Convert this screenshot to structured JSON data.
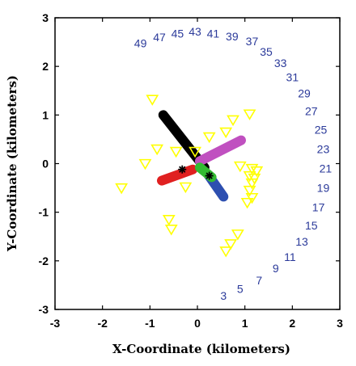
{
  "chart_data": {
    "type": "scatter",
    "title": "",
    "xlabel": "X-Coordinate (kilometers)",
    "ylabel": "Y-Coordinate (kilometers)",
    "xlim": [
      -3,
      3
    ],
    "ylim": [
      -3,
      3
    ],
    "x_ticks": [
      -3,
      -2,
      -1,
      0,
      1,
      2,
      3
    ],
    "y_ticks": [
      -3,
      -2,
      -1,
      0,
      1,
      2,
      3
    ],
    "grid": false,
    "colors": {
      "bearing_labels": "#2b3a9a",
      "triangles": "#ffff00",
      "black_arm": "#000000",
      "pink_arm": "#c050c0",
      "blue_arm": "#2d4fb0",
      "red_arm": "#e02020",
      "green_arm": "#33bb33"
    },
    "bearing_labels": [
      {
        "text": "3",
        "x": 0.55,
        "y": -2.72
      },
      {
        "text": "5",
        "x": 0.9,
        "y": -2.58
      },
      {
        "text": "7",
        "x": 1.3,
        "y": -2.4
      },
      {
        "text": "9",
        "x": 1.65,
        "y": -2.15
      },
      {
        "text": "11",
        "x": 1.95,
        "y": -1.92
      },
      {
        "text": "13",
        "x": 2.2,
        "y": -1.6
      },
      {
        "text": "15",
        "x": 2.4,
        "y": -1.27
      },
      {
        "text": "17",
        "x": 2.55,
        "y": -0.9
      },
      {
        "text": "19",
        "x": 2.65,
        "y": -0.5
      },
      {
        "text": "21",
        "x": 2.7,
        "y": -0.1
      },
      {
        "text": "23",
        "x": 2.65,
        "y": 0.3
      },
      {
        "text": "25",
        "x": 2.6,
        "y": 0.7
      },
      {
        "text": "27",
        "x": 2.4,
        "y": 1.08
      },
      {
        "text": "29",
        "x": 2.25,
        "y": 1.45
      },
      {
        "text": "31",
        "x": 2.0,
        "y": 1.78
      },
      {
        "text": "33",
        "x": 1.75,
        "y": 2.07
      },
      {
        "text": "35",
        "x": 1.45,
        "y": 2.3
      },
      {
        "text": "37",
        "x": 1.15,
        "y": 2.52
      },
      {
        "text": "39",
        "x": 0.73,
        "y": 2.62
      },
      {
        "text": "41",
        "x": 0.33,
        "y": 2.68
      },
      {
        "text": "43",
        "x": -0.05,
        "y": 2.72
      },
      {
        "text": "45",
        "x": -0.42,
        "y": 2.68
      },
      {
        "text": "47",
        "x": -0.8,
        "y": 2.6
      },
      {
        "text": "49",
        "x": -1.2,
        "y": 2.48
      }
    ],
    "triangles": [
      {
        "x": -0.95,
        "y": 1.32
      },
      {
        "x": 1.1,
        "y": 1.02
      },
      {
        "x": 0.75,
        "y": 0.9
      },
      {
        "x": 0.6,
        "y": 0.65
      },
      {
        "x": 0.25,
        "y": 0.55
      },
      {
        "x": -0.85,
        "y": 0.3
      },
      {
        "x": -0.45,
        "y": 0.25
      },
      {
        "x": -0.05,
        "y": 0.25
      },
      {
        "x": -1.1,
        "y": 0.0
      },
      {
        "x": 0.9,
        "y": -0.05
      },
      {
        "x": 1.15,
        "y": -0.1
      },
      {
        "x": 1.25,
        "y": -0.15
      },
      {
        "x": 1.1,
        "y": -0.25
      },
      {
        "x": 1.2,
        "y": -0.3
      },
      {
        "x": 1.15,
        "y": -0.4
      },
      {
        "x": 1.1,
        "y": -0.55
      },
      {
        "x": 1.15,
        "y": -0.7
      },
      {
        "x": 1.05,
        "y": -0.8
      },
      {
        "x": -1.6,
        "y": -0.5
      },
      {
        "x": -0.25,
        "y": -0.48
      },
      {
        "x": -0.6,
        "y": -1.15
      },
      {
        "x": -0.55,
        "y": -1.35
      },
      {
        "x": 0.85,
        "y": -1.45
      },
      {
        "x": 0.7,
        "y": -1.65
      },
      {
        "x": 0.6,
        "y": -1.8
      }
    ],
    "arms": [
      {
        "color": "#000000",
        "from": [
          -0.72,
          1.0
        ],
        "to": [
          0.15,
          -0.08
        ]
      },
      {
        "color": "#c050c0",
        "from": [
          0.05,
          0.05
        ],
        "to": [
          0.92,
          0.48
        ]
      },
      {
        "color": "#2d4fb0",
        "from": [
          0.22,
          -0.22
        ],
        "to": [
          0.55,
          -0.68
        ]
      },
      {
        "color": "#e02020",
        "from": [
          -0.1,
          -0.12
        ],
        "to": [
          -0.75,
          -0.35
        ]
      },
      {
        "color": "#33bb33",
        "from": [
          0.05,
          -0.08
        ],
        "to": [
          0.3,
          -0.28
        ]
      }
    ],
    "stars": [
      {
        "x": -0.32,
        "y": -0.12
      },
      {
        "x": 0.25,
        "y": -0.25
      }
    ]
  }
}
